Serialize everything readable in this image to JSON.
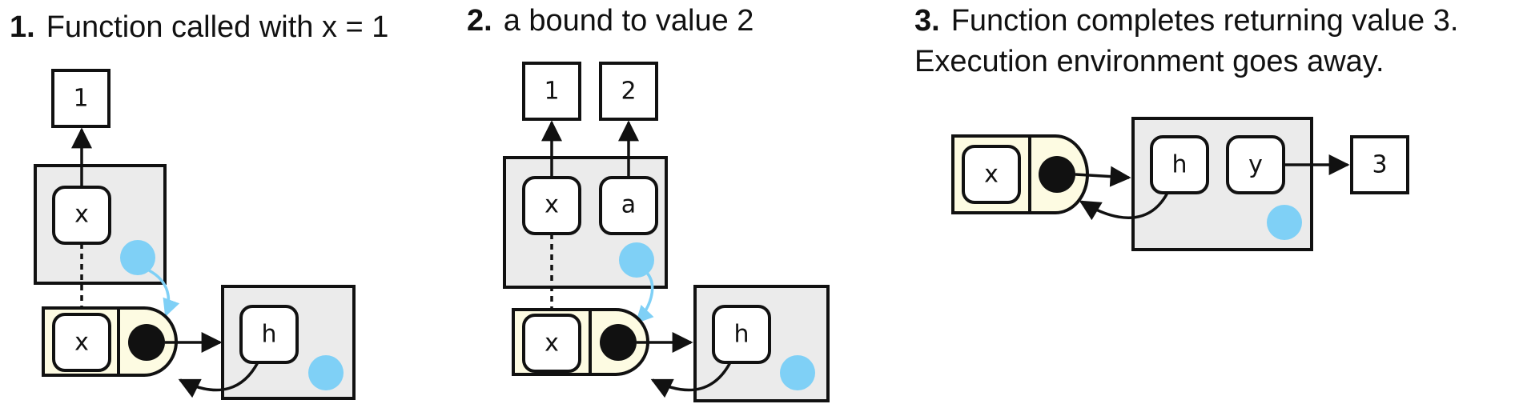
{
  "panels": [
    {
      "step": "1.",
      "caption": "Function called with x = 1",
      "values": [
        "1"
      ],
      "env_bindings": [
        "x"
      ],
      "function_arg": "x",
      "fn_env_binding": "h"
    },
    {
      "step": "2.",
      "caption": "a bound to value 2",
      "values": [
        "1",
        "2"
      ],
      "env_bindings": [
        "x",
        "a"
      ],
      "function_arg": "x",
      "fn_env_binding": "h"
    },
    {
      "step": "3.",
      "caption_line1": "Function completes returning value 3.",
      "caption_line2": "Execution environment goes away.",
      "function_arg": "x",
      "env_bindings": [
        "h",
        "y"
      ],
      "values": [
        "3"
      ]
    }
  ],
  "colors": {
    "environment_fill": "#ebebeb",
    "function_fill": "#fdfbe2",
    "parent_dot": "#7fd0f6",
    "stroke": "#111111"
  }
}
